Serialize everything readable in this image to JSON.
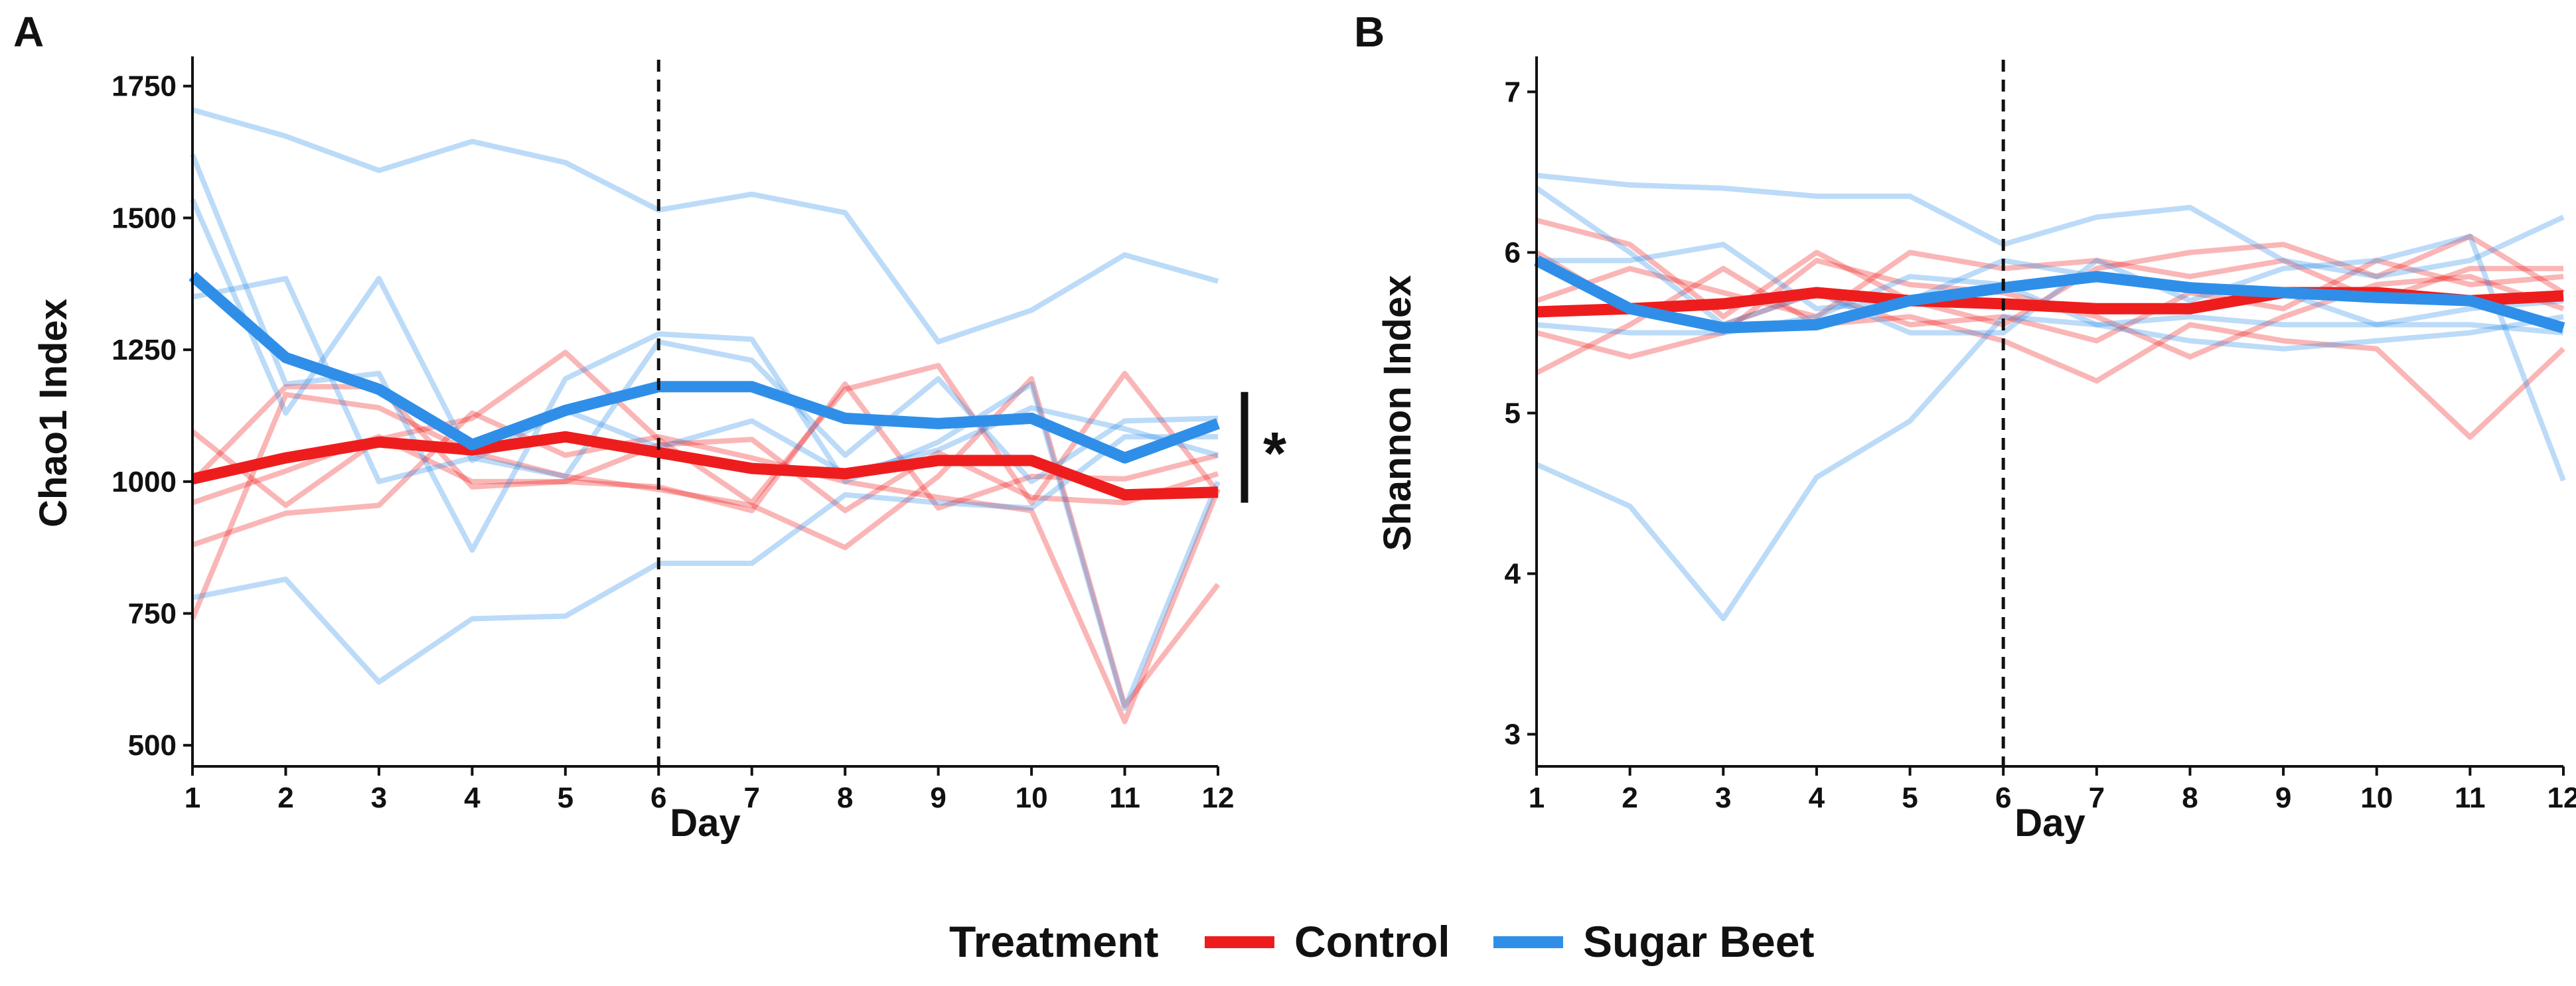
{
  "colors": {
    "control": "#ee1d1d",
    "sugar_beet": "#2f8fe8",
    "axis": "#111111"
  },
  "legend": {
    "title": "Treatment",
    "entries": [
      {
        "label": "Control",
        "series": "control"
      },
      {
        "label": "Sugar Beet",
        "series": "sugar_beet"
      }
    ]
  },
  "chart_data": [
    {
      "panel": "A",
      "type": "line",
      "xlabel": "Day",
      "ylabel": "Chao1 Index",
      "x": [
        1,
        2,
        3,
        4,
        5,
        6,
        7,
        8,
        9,
        10,
        11,
        12
      ],
      "xlim": [
        1,
        12
      ],
      "ylim": [
        460,
        1800
      ],
      "yticks": [
        500,
        750,
        1000,
        1250,
        1500,
        1750
      ],
      "vline_x": 6,
      "significance": {
        "marker": "*",
        "y_range": [
          960,
          1170
        ]
      },
      "series": [
        {
          "name": "Control",
          "group": "control",
          "kind": "mean",
          "values": [
            1005,
            1045,
            1075,
            1060,
            1085,
            1055,
            1025,
            1015,
            1040,
            1040,
            975,
            980
          ]
        },
        {
          "name": "Sugar Beet",
          "group": "sugar_beet",
          "kind": "mean",
          "values": [
            1390,
            1235,
            1175,
            1070,
            1135,
            1180,
            1180,
            1120,
            1110,
            1120,
            1045,
            1110
          ]
        },
        {
          "name": "Control animal 1",
          "group": "control",
          "kind": "individual",
          "values": [
            1095,
            955,
            1080,
            1120,
            1245,
            1080,
            960,
            1175,
            1220,
            960,
            1205,
            980
          ]
        },
        {
          "name": "Control animal 2",
          "group": "control",
          "kind": "individual",
          "values": [
            740,
            1165,
            1140,
            1055,
            1010,
            985,
            955,
            875,
            1010,
            1195,
            575,
            805
          ]
        },
        {
          "name": "Control animal 3",
          "group": "control",
          "kind": "individual",
          "values": [
            880,
            940,
            955,
            1130,
            1050,
            1085,
            1045,
            1000,
            970,
            945,
            545,
            985
          ]
        },
        {
          "name": "Control animal 4",
          "group": "control",
          "kind": "individual",
          "values": [
            960,
            1020,
            1085,
            1000,
            1000,
            990,
            945,
            1185,
            950,
            1010,
            1005,
            1050
          ]
        },
        {
          "name": "Control animal 5",
          "group": "control",
          "kind": "individual",
          "values": [
            1000,
            1180,
            1180,
            990,
            1000,
            1070,
            1080,
            945,
            1055,
            970,
            960,
            1015
          ]
        },
        {
          "name": "Sugar Beet animal 1",
          "group": "sugar_beet",
          "kind": "individual",
          "values": [
            1705,
            1655,
            1590,
            1645,
            1605,
            1515,
            1545,
            1510,
            1265,
            1325,
            1430,
            1380
          ]
        },
        {
          "name": "Sugar Beet animal 2",
          "group": "sugar_beet",
          "kind": "individual",
          "values": [
            1620,
            1185,
            1205,
            870,
            1195,
            1280,
            1270,
            1000,
            1075,
            1185,
            570,
            1000
          ]
        },
        {
          "name": "Sugar Beet animal 3",
          "group": "sugar_beet",
          "kind": "individual",
          "values": [
            1350,
            1385,
            1000,
            1045,
            1010,
            1265,
            1230,
            1050,
            1195,
            1000,
            1115,
            1120
          ]
        },
        {
          "name": "Sugar Beet animal 4",
          "group": "sugar_beet",
          "kind": "individual",
          "values": [
            1535,
            1130,
            1385,
            1040,
            1135,
            1065,
            1115,
            1015,
            1060,
            1140,
            1100,
            1050
          ]
        },
        {
          "name": "Sugar Beet animal 5",
          "group": "sugar_beet",
          "kind": "individual",
          "values": [
            780,
            815,
            620,
            740,
            745,
            845,
            845,
            975,
            960,
            950,
            1085,
            1085
          ]
        }
      ]
    },
    {
      "panel": "B",
      "type": "line",
      "xlabel": "Day",
      "ylabel": "Shannon Index",
      "x": [
        1,
        2,
        3,
        4,
        5,
        6,
        7,
        8,
        9,
        10,
        11,
        12
      ],
      "xlim": [
        1,
        12
      ],
      "ylim": [
        2.8,
        7.2
      ],
      "yticks": [
        3,
        4,
        5,
        6,
        7
      ],
      "vline_x": 6,
      "series": [
        {
          "name": "Control",
          "group": "control",
          "kind": "mean",
          "values": [
            5.63,
            5.65,
            5.68,
            5.75,
            5.7,
            5.68,
            5.65,
            5.65,
            5.75,
            5.75,
            5.7,
            5.73
          ]
        },
        {
          "name": "Sugar Beet",
          "group": "sugar_beet",
          "kind": "mean",
          "values": [
            5.95,
            5.65,
            5.53,
            5.55,
            5.7,
            5.78,
            5.85,
            5.78,
            5.75,
            5.72,
            5.7,
            5.53
          ]
        },
        {
          "name": "Control animal 1",
          "group": "control",
          "kind": "individual",
          "values": [
            6.2,
            6.05,
            5.6,
            6.0,
            5.7,
            5.55,
            5.9,
            6.0,
            6.05,
            5.85,
            6.1,
            5.75
          ]
        },
        {
          "name": "Control animal 2",
          "group": "control",
          "kind": "individual",
          "values": [
            5.25,
            5.55,
            5.9,
            5.55,
            5.6,
            5.45,
            5.2,
            5.55,
            5.45,
            5.4,
            4.85,
            5.4
          ]
        },
        {
          "name": "Control animal 3",
          "group": "control",
          "kind": "individual",
          "values": [
            5.5,
            5.35,
            5.5,
            5.95,
            5.8,
            5.75,
            5.6,
            5.35,
            5.6,
            5.8,
            5.85,
            5.65
          ]
        },
        {
          "name": "Control animal 4",
          "group": "control",
          "kind": "individual",
          "values": [
            5.7,
            5.9,
            5.75,
            5.6,
            6.0,
            5.9,
            5.95,
            5.85,
            5.95,
            5.7,
            5.9,
            5.9
          ]
        },
        {
          "name": "Control animal 5",
          "group": "control",
          "kind": "individual",
          "values": [
            6.0,
            5.65,
            5.55,
            5.75,
            5.55,
            5.6,
            5.45,
            5.75,
            5.65,
            5.95,
            5.8,
            5.85
          ]
        },
        {
          "name": "Sugar Beet animal 1",
          "group": "sugar_beet",
          "kind": "individual",
          "values": [
            6.48,
            6.42,
            6.4,
            6.35,
            6.35,
            6.05,
            6.22,
            6.28,
            5.95,
            5.85,
            5.95,
            6.22
          ]
        },
        {
          "name": "Sugar Beet animal 2",
          "group": "sugar_beet",
          "kind": "individual",
          "values": [
            6.4,
            6.0,
            5.55,
            5.75,
            5.5,
            5.5,
            5.95,
            5.7,
            5.9,
            5.95,
            6.1,
            4.58
          ]
        },
        {
          "name": "Sugar Beet animal 3",
          "group": "sugar_beet",
          "kind": "individual",
          "values": [
            4.68,
            4.42,
            3.72,
            4.6,
            4.95,
            5.6,
            5.55,
            5.45,
            5.4,
            5.45,
            5.5,
            5.6
          ]
        },
        {
          "name": "Sugar Beet animal 4",
          "group": "sugar_beet",
          "kind": "individual",
          "values": [
            5.95,
            5.95,
            6.05,
            5.65,
            5.7,
            5.95,
            5.85,
            5.8,
            5.75,
            5.55,
            5.65,
            5.7
          ]
        },
        {
          "name": "Sugar Beet animal 5",
          "group": "sugar_beet",
          "kind": "individual",
          "values": [
            5.55,
            5.5,
            5.5,
            5.6,
            5.85,
            5.8,
            5.55,
            5.6,
            5.55,
            5.55,
            5.55,
            5.5
          ]
        }
      ]
    }
  ]
}
